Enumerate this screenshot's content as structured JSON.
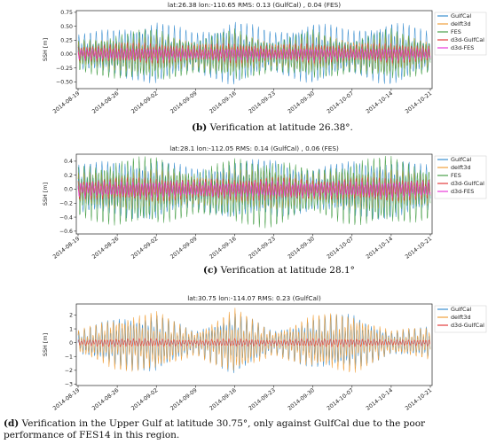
{
  "chart_data": [
    {
      "type": "line",
      "title": "lat:26.38 lon:-110.65 RMS: 0.13 (GulfCal) , 0.04 (FES)",
      "ylabel": "SSH [m]",
      "x_ticks": [
        "2014-08-19",
        "2014-08-26",
        "2014-09-02",
        "2014-09-09",
        "2014-09-16",
        "2014-09-23",
        "2014-09-30",
        "2014-10-07",
        "2014-10-14",
        "2014-10-21"
      ],
      "y_ticks": [
        -0.5,
        -0.25,
        0.0,
        0.25,
        0.5,
        0.75
      ],
      "y_tick_labels": [
        "−0.50",
        "−0.25",
        "0.00",
        "0.25",
        "0.50",
        "0.75"
      ],
      "ylim": [
        -0.62,
        0.78
      ],
      "xlim": [
        "2014-08-19",
        "2014-10-21"
      ],
      "series": [
        {
          "name": "GulfCal",
          "color": "#3b8fd0",
          "amplitude": 0.62,
          "offset": 0.03,
          "envelope": [
            0.55,
            0.72,
            0.95,
            0.6,
            1.0,
            0.6,
            0.95,
            0.65,
            1.0,
            0.6
          ]
        },
        {
          "name": "delft3d",
          "color": "#f0a03c",
          "amplitude": 0.38,
          "offset": 0.0,
          "envelope": [
            0.6,
            0.8,
            0.95,
            0.65,
            1.0,
            0.6,
            0.95,
            0.7,
            1.0,
            0.65
          ]
        },
        {
          "name": "FES",
          "color": "#4aa04a",
          "amplitude": 0.5,
          "offset": -0.03,
          "envelope": [
            0.6,
            0.85,
            1.0,
            0.6,
            1.0,
            0.55,
            0.95,
            0.6,
            1.0,
            0.6
          ]
        },
        {
          "name": "d3d-GulfCal",
          "color": "#e23c3c",
          "amplitude": 0.2,
          "offset": 0.02,
          "envelope": [
            0.7,
            0.9,
            1.0,
            0.7,
            1.0,
            0.7,
            1.0,
            0.75,
            1.0,
            0.7
          ]
        },
        {
          "name": "d3d-FES",
          "color": "#e838d8",
          "amplitude": 0.12,
          "offset": 0.0,
          "envelope": [
            0.8,
            0.9,
            1.0,
            0.8,
            1.0,
            0.8,
            1.0,
            0.8,
            1.0,
            0.8
          ]
        }
      ],
      "legend_position": "upper right, outside"
    },
    {
      "type": "line",
      "title": "lat:28.1 lon:-112.05 RMS: 0.14 (GulfCal) , 0.06 (FES)",
      "ylabel": "SSH [m]",
      "x_ticks": [
        "2014-08-19",
        "2014-08-26",
        "2014-09-02",
        "2014-09-09",
        "2014-09-16",
        "2014-09-23",
        "2014-09-30",
        "2014-10-07",
        "2014-10-14",
        "2014-10-21"
      ],
      "y_ticks": [
        -0.6,
        -0.4,
        -0.2,
        0.0,
        0.2,
        0.4
      ],
      "y_tick_labels": [
        "−0.6",
        "−0.4",
        "−0.2",
        "0.0",
        "0.2",
        "0.4"
      ],
      "ylim": [
        -0.64,
        0.5
      ],
      "xlim": [
        "2014-08-19",
        "2014-10-21"
      ],
      "series": [
        {
          "name": "GulfCal",
          "color": "#3b8fd0",
          "amplitude": 0.44,
          "offset": 0.0,
          "envelope": [
            0.85,
            0.95,
            1.0,
            0.7,
            0.95,
            1.0,
            0.7,
            0.95,
            1.0,
            0.8
          ]
        },
        {
          "name": "delft3d",
          "color": "#f0a03c",
          "amplitude": 0.3,
          "offset": 0.0,
          "envelope": [
            0.8,
            0.95,
            1.0,
            0.75,
            0.95,
            1.0,
            0.75,
            0.95,
            1.0,
            0.8
          ]
        },
        {
          "name": "FES",
          "color": "#4aa04a",
          "amplitude": 0.52,
          "offset": -0.04,
          "envelope": [
            0.75,
            0.95,
            1.0,
            0.6,
            0.95,
            1.0,
            0.6,
            0.95,
            1.0,
            0.75
          ]
        },
        {
          "name": "d3d-GulfCal",
          "color": "#e23c3c",
          "amplitude": 0.18,
          "offset": 0.0,
          "envelope": [
            0.8,
            0.9,
            1.0,
            0.8,
            0.9,
            1.0,
            0.8,
            0.9,
            1.0,
            0.8
          ]
        },
        {
          "name": "d3d-FES",
          "color": "#e838d8",
          "amplitude": 0.12,
          "offset": 0.0,
          "envelope": [
            0.9,
            0.9,
            1.0,
            0.9,
            0.9,
            1.0,
            0.9,
            0.9,
            1.0,
            0.9
          ]
        }
      ],
      "legend_position": "upper right, outside"
    },
    {
      "type": "line",
      "title": "lat:30.75 lon:-114.07 RMS: 0.23 (GulfCal)",
      "ylabel": "SSH [m]",
      "x_ticks": [
        "2014-08-19",
        "2014-08-26",
        "2014-09-02",
        "2014-09-09",
        "2014-09-16",
        "2014-09-23",
        "2014-09-30",
        "2014-10-07",
        "2014-10-14",
        "2014-10-21"
      ],
      "y_ticks": [
        -3,
        -2,
        -1,
        0,
        1,
        2
      ],
      "y_tick_labels": [
        "−3",
        "−2",
        "−1",
        "0",
        "1",
        "2"
      ],
      "ylim": [
        -3.1,
        2.8
      ],
      "xlim": [
        "2014-08-19",
        "2014-10-21"
      ],
      "series": [
        {
          "name": "GulfCal",
          "color": "#3b8fd0",
          "amplitude": 2.4,
          "offset": 0.0,
          "envelope": [
            0.35,
            0.8,
            0.9,
            0.35,
            1.0,
            0.35,
            0.8,
            0.9,
            0.35,
            0.5
          ]
        },
        {
          "name": "delft3d",
          "color": "#f0a03c",
          "amplitude": 2.55,
          "offset": 0.0,
          "envelope": [
            0.35,
            0.8,
            0.9,
            0.35,
            1.0,
            0.35,
            0.8,
            0.9,
            0.35,
            0.5
          ]
        },
        {
          "name": "d3d-GulfCal",
          "color": "#e23c3c",
          "amplitude": 0.32,
          "offset": 0.0,
          "envelope": [
            0.7,
            1.0,
            1.0,
            0.7,
            1.0,
            0.7,
            1.0,
            1.0,
            0.7,
            0.8
          ]
        }
      ],
      "legend_position": "upper right, outside"
    }
  ],
  "captions": [
    {
      "label": "(b)",
      "text": " Verification at latitude 26.38°."
    },
    {
      "label": "(c)",
      "text": " Verification at latitude 28.1°"
    },
    {
      "label": "(d)",
      "text": " Verification in the Upper Gulf at latitude 30.75°, only against GulfCal due to the poor performance of FES14 in this region."
    }
  ]
}
